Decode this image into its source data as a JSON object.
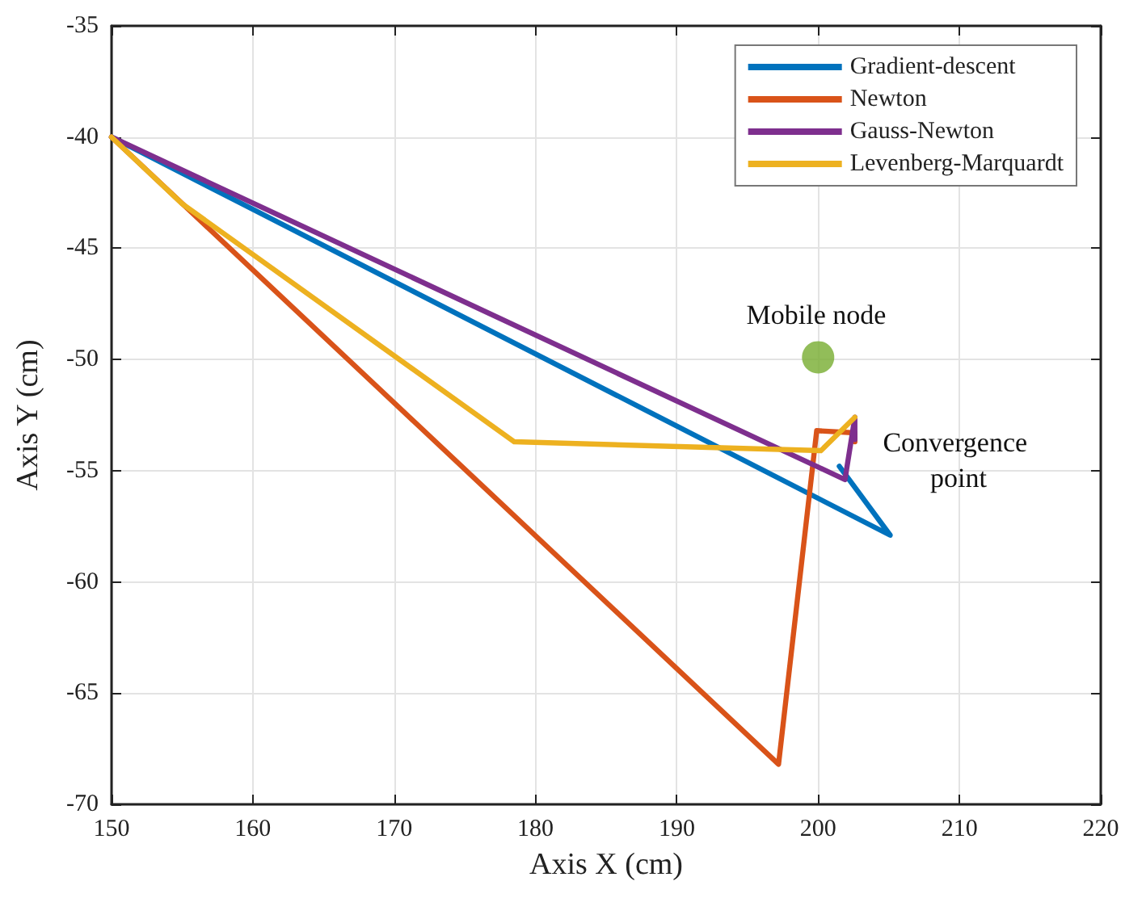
{
  "chart_data": {
    "type": "line",
    "xlabel": "Axis X (cm)",
    "ylabel": "Axis Y (cm)",
    "xlim": [
      150,
      220
    ],
    "xticks": [
      150,
      160,
      170,
      180,
      190,
      200,
      210,
      220
    ],
    "ylim": [
      -70,
      -35
    ],
    "yticks": [
      -70,
      -65,
      -60,
      -55,
      -50,
      -45,
      -40,
      -35
    ],
    "grid": true,
    "legend": "top right",
    "line_style": "solid",
    "series": [
      {
        "name": "Gradient-descent",
        "color": "#0072bd",
        "x": [
          150,
          205.1,
          201.5
        ],
        "values": [
          -40,
          -57.9,
          -54.8
        ]
      },
      {
        "name": "Newton",
        "color": "#d95319",
        "x": [
          150,
          197.2,
          199.9,
          202.6,
          202.6
        ],
        "values": [
          -40,
          -68.2,
          -53.2,
          -53.3,
          -53.7
        ]
      },
      {
        "name": "Gauss-Newton",
        "color": "#7e2f8e",
        "x": [
          150,
          201.9,
          202.6,
          202.6
        ],
        "values": [
          -40,
          -55.4,
          -52.6,
          -53.6
        ]
      },
      {
        "name": "Levenberg-Marquardt",
        "color": "#edb120",
        "x": [
          150,
          155,
          178.5,
          200.2,
          202.6
        ],
        "values": [
          -40,
          -43,
          -53.7,
          -54.1,
          -52.6
        ]
      },
      {
        "type": "scatter",
        "marker": "circle",
        "color": "#77ac30",
        "x": [
          200
        ],
        "values": [
          -49.9
        ]
      }
    ],
    "annotations": [
      "Mobile node",
      "Convergence point"
    ]
  }
}
